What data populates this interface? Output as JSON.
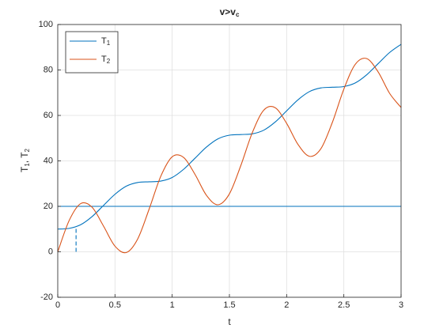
{
  "chart_data": {
    "type": "line",
    "title": "v>v_c",
    "xlabel": "t",
    "ylabel": "T_1, T_2",
    "x": [
      0,
      0.1,
      0.2,
      0.3,
      0.4,
      0.5,
      0.6,
      0.7,
      0.8,
      0.9,
      1,
      1.1,
      1.2,
      1.3,
      1.4,
      1.5,
      1.6,
      1.7,
      1.8,
      1.9,
      2,
      2.1,
      2.2,
      2.3,
      2.4,
      2.5,
      2.6,
      2.7,
      2.8,
      2.9,
      3
    ],
    "series": [
      {
        "name": "T_1",
        "color": "#0072BD",
        "values": [
          10,
          10.3,
          11.9,
          15.5,
          20.4,
          25.3,
          28.9,
          30.5,
          30.8,
          31.1,
          32.7,
          36.3,
          41.2,
          46.1,
          49.7,
          51.3,
          51.6,
          51.9,
          53.5,
          57.1,
          62,
          66.9,
          70.5,
          72.1,
          72.4,
          72.7,
          74.3,
          77.9,
          82.8,
          87.7,
          91.3
        ]
      },
      {
        "name": "T_2",
        "color": "#D95319",
        "values": [
          0,
          13.8,
          21.2,
          19.6,
          11.3,
          2.5,
          -0.3,
          5.8,
          19,
          33.2,
          41.8,
          41.5,
          34,
          24.8,
          20.7,
          25.5,
          38,
          52.4,
          62.3,
          63.4,
          56.5,
          47.2,
          42,
          45.4,
          57,
          71.6,
          82.5,
          85,
          79.1,
          69.7,
          63.5
        ]
      }
    ],
    "hlines": [
      {
        "y": 20,
        "color": "#0072BD"
      }
    ],
    "vlines": [
      {
        "x": 0.16,
        "y": [
          0,
          10.4
        ],
        "color": "#0072BD",
        "dashed": true
      }
    ],
    "xlim": [
      0,
      3
    ],
    "xticks": [
      0,
      0.5,
      1,
      1.5,
      2,
      2.5,
      3
    ],
    "ylim": [
      -20,
      100
    ],
    "yticks": [
      -20,
      0,
      20,
      40,
      60,
      80,
      100
    ],
    "grid": true,
    "legend": "upper left"
  }
}
